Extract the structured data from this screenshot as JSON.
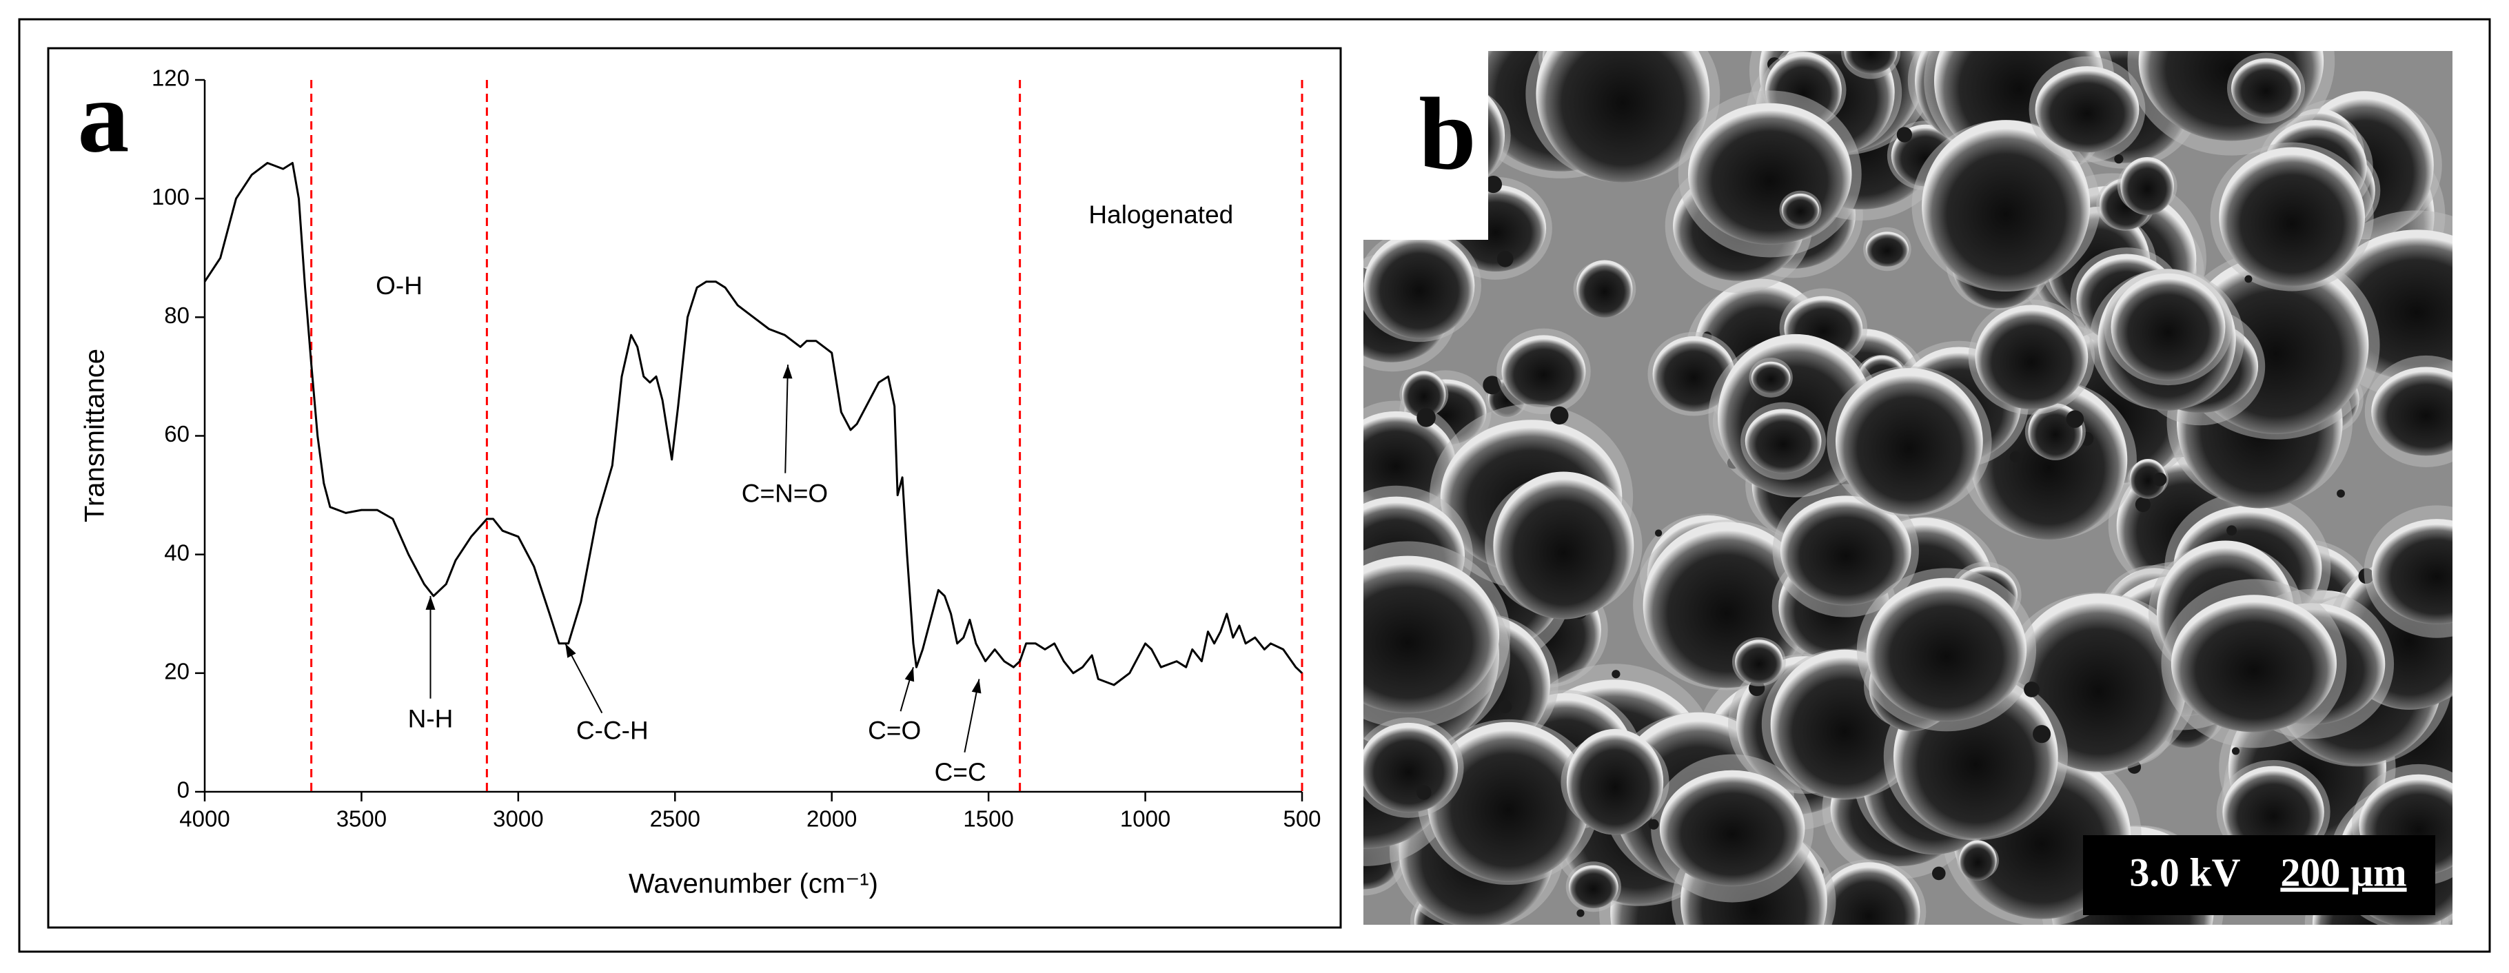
{
  "chart_data": {
    "type": "line",
    "xlabel": "Wavenumber (cm⁻¹)",
    "ylabel": "Transmittance",
    "xlim": [
      4000,
      500
    ],
    "ylim": [
      0,
      120
    ],
    "xticks": [
      4000,
      3500,
      3000,
      2500,
      2000,
      1500,
      1000,
      500
    ],
    "yticks": [
      0,
      20,
      40,
      60,
      80,
      100,
      120
    ],
    "vlines": [
      3660,
      3100,
      1400,
      500
    ],
    "vline_color": "#ff0000",
    "x": [
      4000,
      3950,
      3900,
      3850,
      3800,
      3750,
      3720,
      3700,
      3680,
      3660,
      3640,
      3620,
      3600,
      3550,
      3500,
      3450,
      3400,
      3350,
      3300,
      3270,
      3230,
      3200,
      3150,
      3100,
      3080,
      3050,
      3000,
      2950,
      2900,
      2870,
      2840,
      2800,
      2750,
      2700,
      2670,
      2640,
      2620,
      2600,
      2580,
      2560,
      2540,
      2510,
      2490,
      2460,
      2430,
      2400,
      2370,
      2340,
      2300,
      2250,
      2200,
      2150,
      2100,
      2080,
      2050,
      2000,
      1970,
      1940,
      1920,
      1880,
      1850,
      1820,
      1800,
      1790,
      1775,
      1760,
      1740,
      1730,
      1710,
      1680,
      1660,
      1640,
      1620,
      1600,
      1580,
      1560,
      1540,
      1510,
      1480,
      1450,
      1420,
      1400,
      1380,
      1350,
      1320,
      1290,
      1260,
      1230,
      1200,
      1170,
      1150,
      1100,
      1050,
      1000,
      980,
      950,
      900,
      870,
      850,
      820,
      800,
      780,
      760,
      740,
      720,
      700,
      680,
      650,
      620,
      600,
      560,
      520,
      500
    ],
    "series": [
      {
        "color": "#000000",
        "values": [
          86,
          90,
          100,
          104,
          106,
          105,
          106,
          100,
          85,
          72,
          60,
          52,
          48,
          47,
          47.5,
          47.5,
          46,
          40,
          35,
          33,
          35,
          39,
          43,
          46,
          46,
          44,
          43,
          38,
          30,
          25,
          25,
          32,
          46,
          55,
          70,
          77,
          75,
          70,
          69,
          70,
          66,
          56,
          65,
          80,
          85,
          86,
          86,
          85,
          82,
          80,
          78,
          77,
          75,
          76,
          76,
          74,
          64,
          61,
          62,
          66,
          69,
          70,
          65,
          50,
          53,
          40,
          25,
          21,
          24,
          30,
          34,
          33,
          30,
          25,
          26,
          29,
          25,
          22,
          24,
          22,
          21,
          22,
          25,
          25,
          24,
          25,
          22,
          20,
          21,
          23,
          19,
          18,
          20,
          25,
          24,
          21,
          22,
          21,
          24,
          22,
          27,
          25,
          27,
          30,
          26,
          28,
          25,
          26,
          24,
          25,
          24,
          21,
          20
        ]
      }
    ],
    "annotations": [
      {
        "text": "O-H",
        "x": 3380,
        "y": 85
      },
      {
        "text": "N-H",
        "x": 3280,
        "y": 12,
        "arrow": [
          3280,
          33
        ]
      },
      {
        "text": "C-C-H",
        "x": 2700,
        "y": 10,
        "arrow": [
          2850,
          25
        ]
      },
      {
        "text": "C=N=O",
        "x": 2150,
        "y": 50,
        "arrow": [
          2140,
          72
        ]
      },
      {
        "text": "C=O",
        "x": 1800,
        "y": 10,
        "arrow": [
          1740,
          21
        ]
      },
      {
        "text": "C=C",
        "x": 1590,
        "y": 3,
        "arrow": [
          1530,
          19
        ]
      },
      {
        "text": "Halogenated",
        "x": 950,
        "y": 97
      }
    ]
  },
  "panels": [
    {
      "label": "a"
    },
    {
      "label": "b",
      "scale_bar": {
        "voltage": "3.0 kV",
        "length": "200 µm"
      }
    }
  ]
}
